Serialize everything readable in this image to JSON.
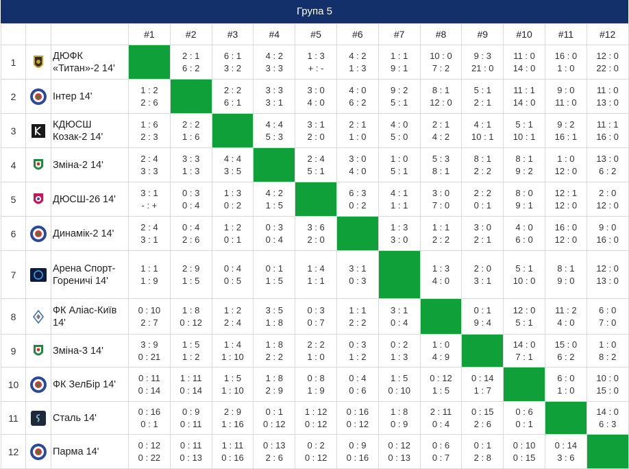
{
  "group_title": "Група 5",
  "columns": [
    "#1",
    "#2",
    "#3",
    "#4",
    "#5",
    "#6",
    "#7",
    "#8",
    "#9",
    "#10",
    "#11",
    "#12"
  ],
  "rows": [
    {
      "num": "1",
      "name": "ДЮФК «Титан»-2 14'",
      "logo": "titan-logo-icon",
      "scores": [
        null,
        [
          "2 : 1",
          "6 : 2"
        ],
        [
          "6 : 1",
          "3 : 2"
        ],
        [
          "4 : 2",
          "3 : 3"
        ],
        [
          "1 : 3",
          "+ : -"
        ],
        [
          "4 : 2",
          "1 : 3"
        ],
        [
          "1 : 1",
          "9 : 1"
        ],
        [
          "10 : 0",
          "7 : 2"
        ],
        [
          "9 : 3",
          "21 : 0"
        ],
        [
          "11 : 0",
          "14 : 0"
        ],
        [
          "16 : 0",
          "1 : 0"
        ],
        [
          "12 : 0",
          "22 : 0"
        ]
      ]
    },
    {
      "num": "2",
      "name": "Інтер 14'",
      "logo": "inter-logo-icon",
      "scores": [
        [
          "1 : 2",
          "2 : 6"
        ],
        null,
        [
          "2 : 2",
          "6 : 1"
        ],
        [
          "3 : 3",
          "3 : 1"
        ],
        [
          "3 : 0",
          "4 : 0"
        ],
        [
          "4 : 0",
          "6 : 2"
        ],
        [
          "9 : 2",
          "5 : 1"
        ],
        [
          "8 : 1",
          "12 : 0"
        ],
        [
          "5 : 1",
          "2 : 1"
        ],
        [
          "11 : 1",
          "14 : 0"
        ],
        [
          "9 : 0",
          "11 : 0"
        ],
        [
          "11 : 0",
          "13 : 0"
        ]
      ]
    },
    {
      "num": "3",
      "name": "КДЮСШ Козак-2 14'",
      "logo": "kozak-logo-icon",
      "scores": [
        [
          "1 : 6",
          "2 : 3"
        ],
        [
          "2 : 2",
          "1 : 6"
        ],
        null,
        [
          "4 : 4",
          "5 : 3"
        ],
        [
          "3 : 1",
          "2 : 0"
        ],
        [
          "2 : 1",
          "1 : 0"
        ],
        [
          "4 : 0",
          "5 : 0"
        ],
        [
          "2 : 1",
          "4 : 2"
        ],
        [
          "4 : 1",
          "10 : 1"
        ],
        [
          "5 : 1",
          "10 : 1"
        ],
        [
          "9 : 2",
          "16 : 1"
        ],
        [
          "11 : 1",
          "16 : 0"
        ]
      ]
    },
    {
      "num": "4",
      "name": "Зміна-2 14'",
      "logo": "zmina-logo-icon",
      "scores": [
        [
          "2 : 4",
          "3 : 3"
        ],
        [
          "3 : 3",
          "1 : 3"
        ],
        [
          "4 : 4",
          "3 : 5"
        ],
        null,
        [
          "2 : 4",
          "5 : 1"
        ],
        [
          "3 : 0",
          "4 : 0"
        ],
        [
          "1 : 0",
          "5 : 1"
        ],
        [
          "5 : 3",
          "8 : 1"
        ],
        [
          "8 : 1",
          "2 : 2"
        ],
        [
          "8 : 1",
          "9 : 2"
        ],
        [
          "1 : 0",
          "12 : 0"
        ],
        [
          "13 : 0",
          "6 : 2"
        ]
      ]
    },
    {
      "num": "5",
      "name": "ДЮСШ-26 14'",
      "logo": "dyussh26-logo-icon",
      "scores": [
        [
          "3 : 1",
          "- : +"
        ],
        [
          "0 : 3",
          "0 : 4"
        ],
        [
          "1 : 3",
          "0 : 2"
        ],
        [
          "4 : 2",
          "1 : 5"
        ],
        null,
        [
          "6 : 3",
          "0 : 2"
        ],
        [
          "4 : 1",
          "1 : 1"
        ],
        [
          "3 : 0",
          "7 : 0"
        ],
        [
          "2 : 2",
          "0 : 1"
        ],
        [
          "8 : 0",
          "9 : 1"
        ],
        [
          "12 : 1",
          "12 : 0"
        ],
        [
          "2 : 0",
          "12 : 0"
        ]
      ]
    },
    {
      "num": "6",
      "name": "Динамік-2 14'",
      "logo": "dynamik-logo-icon",
      "scores": [
        [
          "2 : 4",
          "3 : 1"
        ],
        [
          "0 : 4",
          "2 : 6"
        ],
        [
          "1 : 2",
          "0 : 1"
        ],
        [
          "0 : 3",
          "0 : 4"
        ],
        [
          "3 : 6",
          "2 : 0"
        ],
        null,
        [
          "1 : 3",
          "3 : 0"
        ],
        [
          "1 : 1",
          "2 : 2"
        ],
        [
          "3 : 0",
          "2 : 1"
        ],
        [
          "4 : 0",
          "6 : 0"
        ],
        [
          "16 : 0",
          "12 : 0"
        ],
        [
          "9 : 0",
          "16 : 0"
        ]
      ]
    },
    {
      "num": "7",
      "name": "Арена Спорт-Гореничі 14'",
      "logo": "arena-logo-icon",
      "scores": [
        [
          "1 : 1",
          "1 : 9"
        ],
        [
          "2 : 9",
          "1 : 5"
        ],
        [
          "0 : 4",
          "0 : 5"
        ],
        [
          "0 : 1",
          "1 : 5"
        ],
        [
          "1 : 4",
          "1 : 1"
        ],
        [
          "3 : 1",
          "0 : 3"
        ],
        null,
        [
          "1 : 3",
          "4 : 0"
        ],
        [
          "2 : 0",
          "3 : 1"
        ],
        [
          "5 : 1",
          "10 : 0"
        ],
        [
          "8 : 1",
          "9 : 0"
        ],
        [
          "12 : 0",
          "13 : 0"
        ]
      ]
    },
    {
      "num": "8",
      "name": "ФК Аліас-Київ 14'",
      "logo": "alias-logo-icon",
      "scores": [
        [
          "0 : 10",
          "2 : 7"
        ],
        [
          "1 : 8",
          "0 : 12"
        ],
        [
          "1 : 2",
          "2 : 4"
        ],
        [
          "3 : 5",
          "1 : 8"
        ],
        [
          "0 : 3",
          "0 : 7"
        ],
        [
          "1 : 1",
          "2 : 2"
        ],
        [
          "3 : 1",
          "0 : 4"
        ],
        null,
        [
          "0 : 1",
          "9 : 4"
        ],
        [
          "12 : 0",
          "5 : 1"
        ],
        [
          "11 : 2",
          "4 : 0"
        ],
        [
          "6 : 0",
          "7 : 0"
        ]
      ]
    },
    {
      "num": "9",
      "name": "Зміна-3 14'",
      "logo": "zmina3-logo-icon",
      "scores": [
        [
          "3 : 9",
          "0 : 21"
        ],
        [
          "1 : 5",
          "1 : 2"
        ],
        [
          "1 : 4",
          "1 : 10"
        ],
        [
          "1 : 8",
          "2 : 2"
        ],
        [
          "2 : 2",
          "1 : 0"
        ],
        [
          "0 : 3",
          "1 : 2"
        ],
        [
          "0 : 2",
          "1 : 3"
        ],
        [
          "1 : 0",
          "4 : 9"
        ],
        null,
        [
          "14 : 0",
          "7 : 1"
        ],
        [
          "15 : 0",
          "6 : 2"
        ],
        [
          "1 : 0",
          "8 : 2"
        ]
      ]
    },
    {
      "num": "10",
      "name": "ФК ЗелБір 14'",
      "logo": "zelbir-logo-icon",
      "scores": [
        [
          "0 : 11",
          "0 : 14"
        ],
        [
          "1 : 11",
          "0 : 14"
        ],
        [
          "1 : 5",
          "1 : 10"
        ],
        [
          "1 : 8",
          "2 : 9"
        ],
        [
          "0 : 8",
          "1 : 9"
        ],
        [
          "0 : 4",
          "0 : 6"
        ],
        [
          "1 : 5",
          "0 : 10"
        ],
        [
          "0 : 12",
          "1 : 5"
        ],
        [
          "0 : 14",
          "1 : 7"
        ],
        null,
        [
          "6 : 0",
          "1 : 0"
        ],
        [
          "10 : 0",
          "15 : 0"
        ]
      ]
    },
    {
      "num": "11",
      "name": "Сталь 14'",
      "logo": "stal-logo-icon",
      "scores": [
        [
          "0 : 16",
          "0 : 1"
        ],
        [
          "0 : 9",
          "0 : 11"
        ],
        [
          "2 : 9",
          "1 : 16"
        ],
        [
          "0 : 1",
          "0 : 12"
        ],
        [
          "1 : 12",
          "0 : 12"
        ],
        [
          "0 : 16",
          "0 : 12"
        ],
        [
          "1 : 8",
          "0 : 9"
        ],
        [
          "2 : 11",
          "0 : 4"
        ],
        [
          "0 : 15",
          "2 : 6"
        ],
        [
          "0 : 6",
          "0 : 1"
        ],
        null,
        [
          "14 : 0",
          "6 : 3"
        ]
      ]
    },
    {
      "num": "12",
      "name": "Парма 14'",
      "logo": "parma-logo-icon",
      "scores": [
        [
          "0 : 12",
          "0 : 22"
        ],
        [
          "0 : 11",
          "0 : 13"
        ],
        [
          "1 : 11",
          "0 : 16"
        ],
        [
          "0 : 13",
          "2 : 6"
        ],
        [
          "0 : 2",
          "0 : 12"
        ],
        [
          "0 : 9",
          "0 : 16"
        ],
        [
          "0 : 12",
          "0 : 13"
        ],
        [
          "0 : 6",
          "0 : 7"
        ],
        [
          "0 : 1",
          "2 : 8"
        ],
        [
          "0 : 10",
          "0 : 15"
        ],
        [
          "0 : 14",
          "3 : 6"
        ],
        null
      ]
    }
  ],
  "colors": {
    "header": "#14306a",
    "self_cell": "#10a03a",
    "border": "#d8d8d8"
  }
}
